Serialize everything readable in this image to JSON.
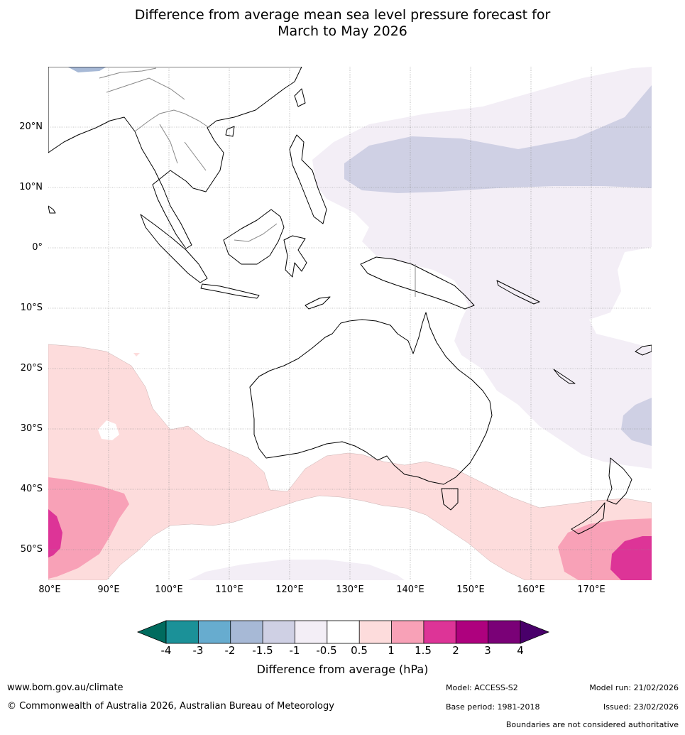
{
  "title": {
    "line1": "Difference from average mean sea level pressure forecast for",
    "line2": "March to May 2026"
  },
  "axes": {
    "lat_labels": [
      "20°N",
      "10°N",
      "0°",
      "10°S",
      "20°S",
      "30°S",
      "40°S",
      "50°S"
    ],
    "lon_labels": [
      "80°E",
      "90°E",
      "100°E",
      "110°E",
      "120°E",
      "130°E",
      "140°E",
      "150°E",
      "160°E",
      "170°E"
    ]
  },
  "colorbar": {
    "labels": [
      "-4",
      "-3",
      "-2",
      "-1.5",
      "-1",
      "-0.5",
      "0.5",
      "1",
      "1.5",
      "2",
      "3",
      "4"
    ],
    "colors": {
      "below_min": "#006b5e",
      "bins": [
        "#1b9198",
        "#67accf",
        "#a7b9d6",
        "#cfd0e4",
        "#f3eef6",
        "#ffffff",
        "#fddcdc",
        "#f8a1b7",
        "#dd3497",
        "#ae017e",
        "#7a0177"
      ],
      "above_max": "#49006a"
    },
    "title": "Difference from average (hPa)"
  },
  "footer": {
    "website": "www.bom.gov.au/climate",
    "copyright": "© Commonwealth of Australia 2026, Australian Bureau of Meteorology",
    "model": "Model: ACCESS-S2",
    "base_period": "Base period: 1981-2018",
    "model_run": "Model run: 21/02/2026",
    "issued": "Issued: 23/02/2026",
    "disclaimer": "Boundaries are not considered authoritative"
  }
}
